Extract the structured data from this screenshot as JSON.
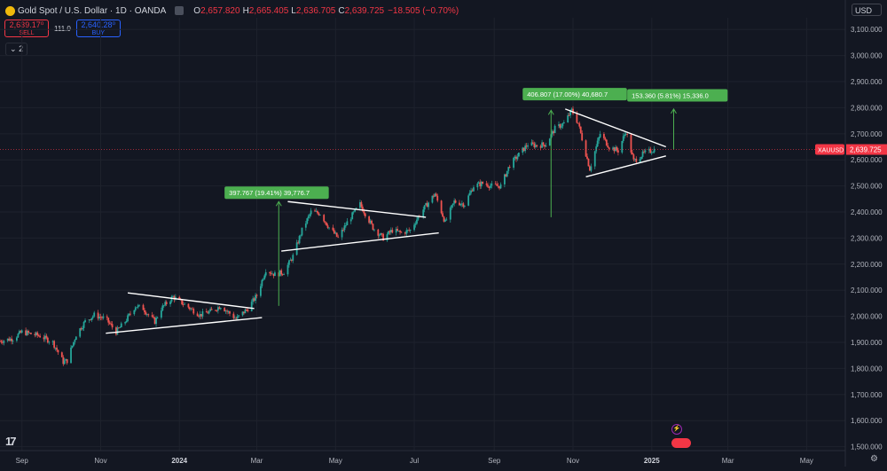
{
  "header": {
    "title": "Gold Spot / U.S. Dollar · 1D · OANDA",
    "ohlc": [
      {
        "k": "O",
        "v": "2,657.820"
      },
      {
        "k": "H",
        "v": "2,665.405"
      },
      {
        "k": "L",
        "v": "2,636.705"
      },
      {
        "k": "C",
        "v": "2,639.725"
      }
    ],
    "change": "−18.505 (−0.70%)"
  },
  "trade": {
    "sell_price": "2,639.17⁰",
    "sell_label": "SELL",
    "spread": "111.0",
    "buy_price": "2,640.28⁰",
    "buy_label": "BUY"
  },
  "collapse_count": "2",
  "currency": "USD",
  "colors": {
    "bg": "#131722",
    "up": "#26a69a",
    "down": "#ef5350",
    "grid": "#1e222d",
    "axis_text": "#b2b5be",
    "annotation_bg": "#4caf50",
    "arrow": "#4caf50",
    "trendline": "#ffffff",
    "price_label": "#f23645"
  },
  "chart_data": {
    "type": "candlestick",
    "symbol": "XAUUSD",
    "last_price": "2,639.725",
    "y_ticks": [
      "3,100.000",
      "3,000.000",
      "2,900.000",
      "2,800.000",
      "2,700.000",
      "2,600.000",
      "2,500.000",
      "2,400.000",
      "2,300.000",
      "2,200.000",
      "2,100.000",
      "2,000.000",
      "1,900.000",
      "1,800.000",
      "1,700.000",
      "1,600.000",
      "1,500.000"
    ],
    "y_tick_values": [
      3100,
      3000,
      2900,
      2800,
      2700,
      2600,
      2500,
      2400,
      2300,
      2200,
      2100,
      2000,
      1900,
      1800,
      1700,
      1600,
      1500
    ],
    "ylim": [
      1485,
      3145
    ],
    "x_ticks": [
      "Sep",
      "Nov",
      "2024",
      "Mar",
      "May",
      "Jul",
      "Sep",
      "Nov",
      "2025",
      "Mar",
      "May"
    ],
    "x_tick_dates": [
      "2023-09-01",
      "2023-11-01",
      "2024-01-01",
      "2024-03-01",
      "2024-05-01",
      "2024-07-01",
      "2024-09-01",
      "2024-11-01",
      "2025-01-01",
      "2025-03-01",
      "2025-05-01"
    ],
    "x_bold": [
      "2024",
      "2025"
    ],
    "xlim": [
      "2023-08-15",
      "2025-05-31"
    ],
    "price_path": [
      [
        "2023-08-15",
        1905
      ],
      [
        "2023-08-25",
        1915
      ],
      [
        "2023-09-01",
        1940
      ],
      [
        "2023-09-15",
        1925
      ],
      [
        "2023-09-25",
        1900
      ],
      [
        "2023-10-03",
        1825
      ],
      [
        "2023-10-06",
        1830
      ],
      [
        "2023-10-13",
        1930
      ],
      [
        "2023-10-20",
        1980
      ],
      [
        "2023-10-27",
        2005
      ],
      [
        "2023-11-05",
        1990
      ],
      [
        "2023-11-13",
        1940
      ],
      [
        "2023-11-20",
        1980
      ],
      [
        "2023-11-28",
        2040
      ],
      [
        "2023-12-04",
        2030
      ],
      [
        "2023-12-08",
        2005
      ],
      [
        "2023-12-13",
        1980
      ],
      [
        "2023-12-18",
        2030
      ],
      [
        "2023-12-27",
        2075
      ],
      [
        "2024-01-05",
        2045
      ],
      [
        "2024-01-17",
        2005
      ],
      [
        "2024-01-26",
        2020
      ],
      [
        "2024-02-02",
        2040
      ],
      [
        "2024-02-14",
        1990
      ],
      [
        "2024-02-23",
        2030
      ],
      [
        "2024-03-01",
        2080
      ],
      [
        "2024-03-08",
        2180
      ],
      [
        "2024-03-15",
        2160
      ],
      [
        "2024-03-22",
        2170
      ],
      [
        "2024-03-29",
        2230
      ],
      [
        "2024-04-05",
        2330
      ],
      [
        "2024-04-12",
        2400
      ],
      [
        "2024-04-19",
        2395
      ],
      [
        "2024-04-26",
        2340
      ],
      [
        "2024-05-03",
        2300
      ],
      [
        "2024-05-10",
        2360
      ],
      [
        "2024-05-20",
        2430
      ],
      [
        "2024-05-30",
        2340
      ],
      [
        "2024-06-07",
        2300
      ],
      [
        "2024-06-14",
        2330
      ],
      [
        "2024-06-21",
        2320
      ],
      [
        "2024-06-28",
        2330
      ],
      [
        "2024-07-05",
        2390
      ],
      [
        "2024-07-17",
        2470
      ],
      [
        "2024-07-25",
        2360
      ],
      [
        "2024-08-01",
        2440
      ],
      [
        "2024-08-09",
        2430
      ],
      [
        "2024-08-16",
        2500
      ],
      [
        "2024-08-23",
        2510
      ],
      [
        "2024-08-30",
        2500
      ],
      [
        "2024-09-06",
        2500
      ],
      [
        "2024-09-13",
        2580
      ],
      [
        "2024-09-20",
        2620
      ],
      [
        "2024-09-27",
        2660
      ],
      [
        "2024-10-04",
        2655
      ],
      [
        "2024-10-11",
        2660
      ],
      [
        "2024-10-18",
        2720
      ],
      [
        "2024-10-25",
        2740
      ],
      [
        "2024-10-31",
        2790
      ],
      [
        "2024-11-05",
        2740
      ],
      [
        "2024-11-14",
        2565
      ],
      [
        "2024-11-22",
        2700
      ],
      [
        "2024-11-29",
        2650
      ],
      [
        "2024-12-06",
        2635
      ],
      [
        "2024-12-12",
        2710
      ],
      [
        "2024-12-18",
        2595
      ],
      [
        "2024-12-26",
        2625
      ],
      [
        "2025-01-03",
        2640
      ]
    ],
    "trendlines": [
      {
        "from": [
          "2023-11-22",
          2090
        ],
        "to": [
          "2024-02-28",
          2030
        ]
      },
      {
        "from": [
          "2023-11-05",
          1935
        ],
        "to": [
          "2024-03-05",
          1995
        ]
      },
      {
        "from": [
          "2024-03-25",
          2440
        ],
        "to": [
          "2024-07-10",
          2380
        ]
      },
      {
        "from": [
          "2024-03-20",
          2250
        ],
        "to": [
          "2024-07-20",
          2320
        ]
      },
      {
        "from": [
          "2024-10-26",
          2795
        ],
        "to": [
          "2025-01-12",
          2650
        ]
      },
      {
        "from": [
          "2024-11-11",
          2535
        ],
        "to": [
          "2025-01-12",
          2615
        ]
      }
    ],
    "annotations": [
      {
        "label": "397.767 (19.41%) 39,776.7",
        "box_date": "2024-02-05",
        "box_value": 2498,
        "arrow_date": "2024-03-18",
        "from": 2040,
        "to": 2440
      },
      {
        "label": "406.807 (17.00%) 40,680.7",
        "box_date": "2024-09-23",
        "box_value": 2876,
        "arrow_date": "2024-10-15",
        "from": 2380,
        "to": 2790
      },
      {
        "label": "153.360 (5.81%) 15,336.0",
        "box_date": "2024-12-13",
        "box_value": 2871,
        "arrow_date": "2025-01-18",
        "from": 2640,
        "to": 2795
      }
    ]
  }
}
